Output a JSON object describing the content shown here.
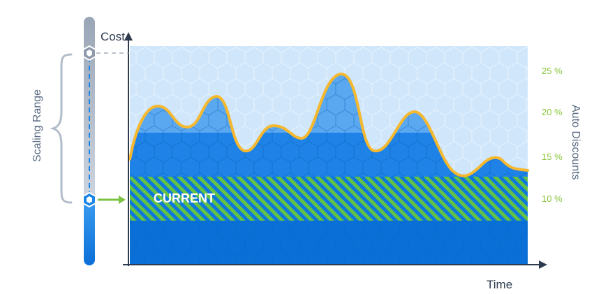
{
  "labels": {
    "y_axis": "Cost",
    "x_axis": "Time",
    "right_axis": "Auto Discounts",
    "left_bracket": "Scaling Range",
    "current": "CURRENT"
  },
  "discount_ticks": [
    "25 %",
    "20 %",
    "15 %",
    "10 %"
  ],
  "colors": {
    "background_fill": "#cfe6fb",
    "usage_fill": "#3d93ec",
    "usage_fill_light": "#5aa8f0",
    "base_fill": "#0a6fd6",
    "curve": "#f5b82e",
    "band_green": "#62c246",
    "band_blue": "#0e78dd",
    "axis": "#2e3b4e",
    "tick_text": "#8cc63f",
    "slider_track": "#cfd8e4",
    "slider_fill": "#1a86e8",
    "arrow_green": "#7cc242"
  },
  "icons": {
    "top_handle": "hexagon-handle-icon",
    "bottom_handle": "hexagon-handle-icon",
    "current_arrow": "arrow-right-icon",
    "bracket": "curly-brace-icon"
  }
}
